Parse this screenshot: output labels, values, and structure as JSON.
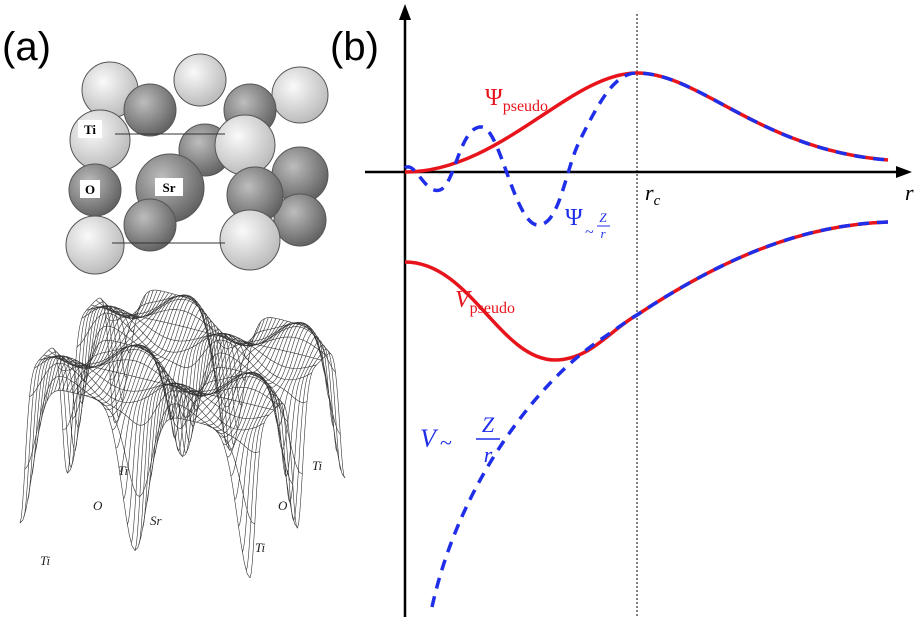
{
  "panel_a": {
    "label": "(a)",
    "atom_labels": [
      "Ti",
      "O",
      "Sr"
    ],
    "surface_labels": [
      "Ti",
      "O",
      "Sr",
      "O",
      "Ti",
      "Ti",
      "Ti"
    ]
  },
  "panel_b": {
    "label": "(b)",
    "psi_pseudo": {
      "main": "Ψ",
      "sub": "pseudo"
    },
    "psi_coulomb": {
      "main": "Ψ",
      "sub": "~",
      "num": "Z",
      "den": "r"
    },
    "v_pseudo": {
      "main": "V",
      "sub": "pseudo"
    },
    "v_coulomb": {
      "main": "V",
      "sub": "~",
      "num": "Z",
      "den": "r"
    },
    "rc": {
      "main": "r",
      "sub": "c"
    },
    "r_axis": "r"
  }
}
